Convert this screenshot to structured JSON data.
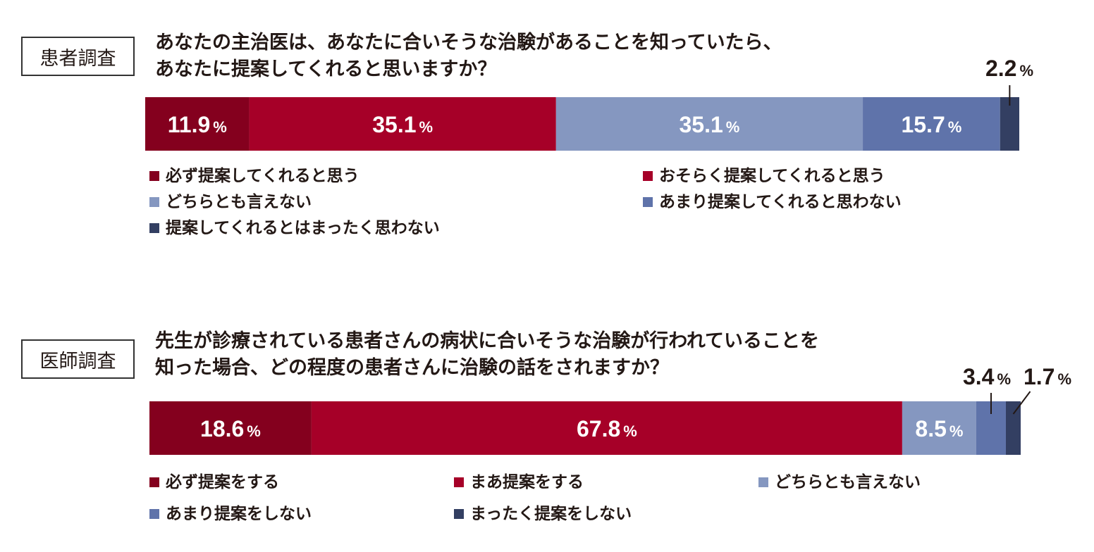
{
  "chart_data": [
    {
      "type": "bar",
      "stacked": true,
      "orientation": "horizontal",
      "badge": "患者調査",
      "title_lines": [
        "あなたの主治医は、あなたに合いそうな治験があることを知っていたら、",
        "あなたに提案してくれると思いますか？"
      ],
      "unit": "%",
      "series": [
        {
          "name": "必ず提案してくれると思う",
          "value": 11.9,
          "color": "#84001e"
        },
        {
          "name": "おそらく提案してくれると思う",
          "value": 35.1,
          "color": "#a60028"
        },
        {
          "name": "どちらとも言えない",
          "value": 35.1,
          "color": "#8597c0"
        },
        {
          "name": "あまり提案してくれると思わない",
          "value": 15.7,
          "color": "#5f73aa"
        },
        {
          "name": "提案してくれるとはまったく思わない",
          "value": 2.2,
          "color": "#333f62"
        }
      ],
      "value_labels": [
        "11.9",
        "35.1",
        "35.1",
        "15.7",
        "2.2"
      ]
    },
    {
      "type": "bar",
      "stacked": true,
      "orientation": "horizontal",
      "badge": "医師調査",
      "title_lines": [
        "先生が診療されている患者さんの病状に合いそうな治験が行われていることを",
        "知った場合、どの程度の患者さんに治験の話をされますか？"
      ],
      "unit": "%",
      "series": [
        {
          "name": "必ず提案をする",
          "value": 18.6,
          "color": "#84001e"
        },
        {
          "name": "まあ提案をする",
          "value": 67.8,
          "color": "#a60028"
        },
        {
          "name": "どちらとも言えない",
          "value": 8.5,
          "color": "#8597c0"
        },
        {
          "name": "あまり提案をしない",
          "value": 3.4,
          "color": "#5f73aa"
        },
        {
          "name": "まったく提案をしない",
          "value": 1.7,
          "color": "#333f62"
        }
      ],
      "value_labels": [
        "18.6",
        "67.8",
        "8.5",
        "3.4",
        "1.7"
      ]
    }
  ]
}
